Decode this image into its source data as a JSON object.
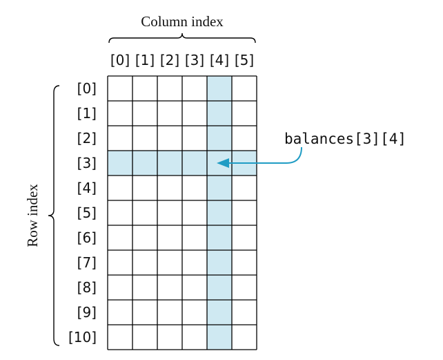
{
  "column_axis": {
    "title": "Column index",
    "labels": [
      "[0]",
      "[1]",
      "[2]",
      "[3]",
      "[4]",
      "[5]"
    ]
  },
  "row_axis": {
    "title": "Row index",
    "labels": [
      "[0]",
      "[1]",
      "[2]",
      "[3]",
      "[4]",
      "[5]",
      "[6]",
      "[7]",
      "[8]",
      "[9]",
      "[10]"
    ]
  },
  "grid": {
    "rows": 11,
    "columns": 6,
    "highlighted_row": 3,
    "highlighted_column": 4
  },
  "callout": {
    "text": "balances[3][4]"
  },
  "colors": {
    "highlight": "#cfe9f2",
    "arrow": "#1f9cc4",
    "grid_line": "#000000",
    "text": "#111111"
  }
}
